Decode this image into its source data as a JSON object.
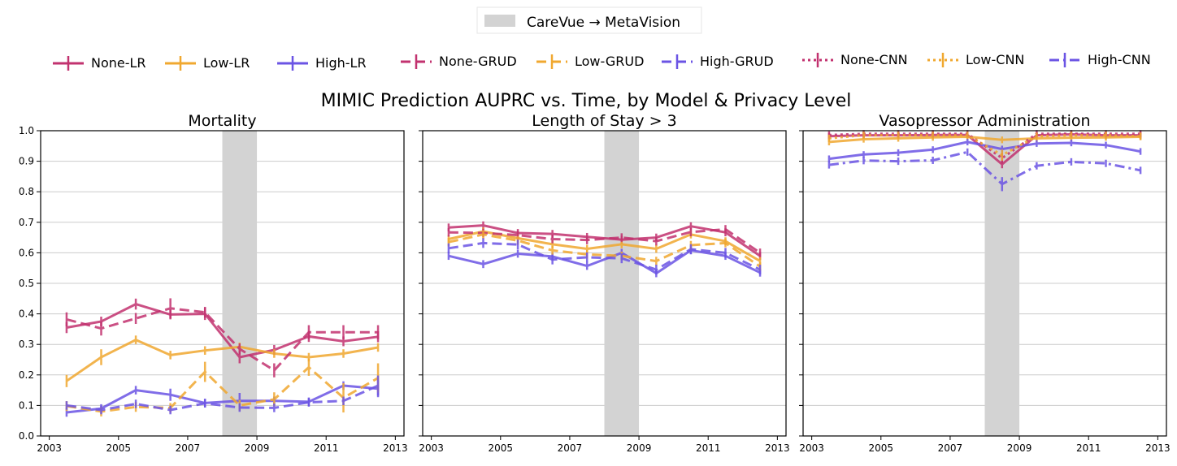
{
  "figure": {
    "title": "MIMIC Prediction AUPRC vs. Time, by Model & Privacy Level",
    "shading_legend": "CareVue → MetaVision"
  },
  "colors": {
    "None": "#c2326f",
    "Low": "#f0a830",
    "High": "#6b54e4",
    "shade": "#d3d3d3",
    "grid": "#cccccc"
  },
  "legend": [
    {
      "label": "None-LR",
      "level": "None",
      "dash": "solid"
    },
    {
      "label": "Low-LR",
      "level": "Low",
      "dash": "solid"
    },
    {
      "label": "High-LR",
      "level": "High",
      "dash": "solid"
    },
    {
      "label": "None-GRUD",
      "level": "None",
      "dash": "dashed"
    },
    {
      "label": "Low-GRUD",
      "level": "Low",
      "dash": "dashed"
    },
    {
      "label": "High-GRUD",
      "level": "High",
      "dash": "dashed"
    },
    {
      "label": "None-CNN",
      "level": "None",
      "dash": "dotted"
    },
    {
      "label": "Low-CNN",
      "level": "Low",
      "dash": "dotted"
    },
    {
      "label": "High-CNN",
      "level": "High",
      "dash": "dashdot"
    }
  ],
  "chart_data": [
    {
      "type": "line",
      "title": "Mortality",
      "xlim": [
        2002.75,
        2013.25
      ],
      "ylim": [
        0.0,
        1.0
      ],
      "xticks": [
        2003,
        2005,
        2007,
        2009,
        2011,
        2013
      ],
      "yticks": [
        0.0,
        0.1,
        0.2,
        0.3,
        0.4,
        0.5,
        0.6,
        0.7,
        0.8,
        0.9,
        1.0
      ],
      "shade": [
        2008,
        2009
      ],
      "grid": "y",
      "series": [
        {
          "name": "None-LR",
          "level": "None",
          "dash": "solid",
          "x": [
            2003.5,
            2004.5,
            2005.5,
            2006.5,
            2007.5,
            2008.5,
            2009.5,
            2010.5,
            2011.5,
            2012.5
          ],
          "y": [
            0.355,
            0.375,
            0.432,
            0.398,
            0.4,
            0.258,
            0.282,
            0.326,
            0.31,
            0.325
          ],
          "err": [
            0.01,
            0.008,
            0.01,
            0.008,
            0.012,
            0.012,
            0.008,
            0.01,
            0.008,
            0.01
          ]
        },
        {
          "name": "Low-LR",
          "level": "Low",
          "dash": "solid",
          "x": [
            2003.5,
            2004.5,
            2005.5,
            2006.5,
            2007.5,
            2008.5,
            2009.5,
            2010.5,
            2011.5,
            2012.5
          ],
          "y": [
            0.18,
            0.258,
            0.315,
            0.265,
            0.28,
            0.292,
            0.27,
            0.258,
            0.27,
            0.29
          ],
          "err": [
            0.012,
            0.018,
            0.006,
            0.006,
            0.006,
            0.006,
            0.006,
            0.006,
            0.006,
            0.006
          ]
        },
        {
          "name": "High-LR",
          "level": "High",
          "dash": "solid",
          "x": [
            2003.5,
            2004.5,
            2005.5,
            2006.5,
            2007.5,
            2008.5,
            2009.5,
            2010.5,
            2011.5,
            2012.5
          ],
          "y": [
            0.077,
            0.09,
            0.15,
            0.135,
            0.108,
            0.115,
            0.115,
            0.112,
            0.165,
            0.155
          ],
          "err": [
            0.006,
            0.006,
            0.006,
            0.012,
            0.006,
            0.018,
            0.006,
            0.006,
            0.006,
            0.02
          ]
        },
        {
          "name": "None-GRUD",
          "level": "None",
          "dash": "dashed",
          "x": [
            2003.5,
            2004.5,
            2005.5,
            2006.5,
            2007.5,
            2008.5,
            2009.5,
            2010.5,
            2011.5,
            2012.5
          ],
          "y": [
            0.382,
            0.352,
            0.385,
            0.418,
            0.405,
            0.285,
            0.215,
            0.34,
            0.34,
            0.34
          ],
          "err": [
            0.015,
            0.015,
            0.01,
            0.025,
            0.01,
            0.01,
            0.015,
            0.015,
            0.015,
            0.015
          ]
        },
        {
          "name": "Low-GRUD",
          "level": "Low",
          "dash": "dashed",
          "x": [
            2003.5,
            2004.5,
            2005.5,
            2006.5,
            2007.5,
            2008.5,
            2009.5,
            2010.5,
            2011.5,
            2012.5
          ],
          "y": [
            0.098,
            0.08,
            0.095,
            0.092,
            0.21,
            0.1,
            0.12,
            0.225,
            0.125,
            0.19
          ],
          "err": [
            0.008,
            0.008,
            0.008,
            0.008,
            0.025,
            0.01,
            0.015,
            0.02,
            0.04,
            0.04
          ]
        },
        {
          "name": "High-GRUD",
          "level": "High",
          "dash": "dashed",
          "x": [
            2003.5,
            2004.5,
            2005.5,
            2006.5,
            2007.5,
            2008.5,
            2009.5,
            2010.5,
            2011.5,
            2012.5
          ],
          "y": [
            0.1,
            0.085,
            0.105,
            0.085,
            0.107,
            0.093,
            0.092,
            0.11,
            0.115,
            0.165
          ],
          "err": [
            0.006,
            0.006,
            0.006,
            0.006,
            0.006,
            0.006,
            0.006,
            0.006,
            0.006,
            0.025
          ]
        }
      ]
    },
    {
      "type": "line",
      "title": "Length of Stay > 3",
      "xlim": [
        2002.75,
        2013.25
      ],
      "ylim": [
        0.0,
        1.0
      ],
      "xticks": [
        2003,
        2005,
        2007,
        2009,
        2011,
        2013
      ],
      "yticks": [
        0.0,
        0.1,
        0.2,
        0.3,
        0.4,
        0.5,
        0.6,
        0.7,
        0.8,
        0.9,
        1.0
      ],
      "shade": [
        2008,
        2009
      ],
      "grid": "y",
      "series": [
        {
          "name": "None-LR",
          "level": "None",
          "dash": "solid",
          "x": [
            2003.5,
            2004.5,
            2005.5,
            2006.5,
            2007.5,
            2008.5,
            2009.5,
            2010.5,
            2011.5,
            2012.5
          ],
          "y": [
            0.683,
            0.69,
            0.665,
            0.662,
            0.652,
            0.643,
            0.65,
            0.687,
            0.667,
            0.59
          ],
          "err": [
            0.005,
            0.005,
            0.005,
            0.005,
            0.005,
            0.005,
            0.005,
            0.005,
            0.005,
            0.005
          ]
        },
        {
          "name": "Low-LR",
          "level": "Low",
          "dash": "solid",
          "x": [
            2003.5,
            2004.5,
            2005.5,
            2006.5,
            2007.5,
            2008.5,
            2009.5,
            2010.5,
            2011.5,
            2012.5
          ],
          "y": [
            0.645,
            0.67,
            0.648,
            0.628,
            0.613,
            0.628,
            0.613,
            0.66,
            0.638,
            0.573
          ],
          "err": [
            0.005,
            0.005,
            0.005,
            0.005,
            0.005,
            0.005,
            0.005,
            0.005,
            0.005,
            0.005
          ]
        },
        {
          "name": "High-LR",
          "level": "High",
          "dash": "solid",
          "x": [
            2003.5,
            2004.5,
            2005.5,
            2006.5,
            2007.5,
            2008.5,
            2009.5,
            2010.5,
            2011.5,
            2012.5
          ],
          "y": [
            0.59,
            0.563,
            0.597,
            0.588,
            0.557,
            0.6,
            0.533,
            0.608,
            0.59,
            0.535
          ],
          "err": [
            0.005,
            0.005,
            0.005,
            0.005,
            0.005,
            0.005,
            0.005,
            0.005,
            0.005,
            0.005
          ]
        },
        {
          "name": "None-GRUD",
          "level": "None",
          "dash": "dashed",
          "x": [
            2003.5,
            2004.5,
            2005.5,
            2006.5,
            2007.5,
            2008.5,
            2009.5,
            2010.5,
            2011.5,
            2012.5
          ],
          "y": [
            0.667,
            0.665,
            0.658,
            0.645,
            0.642,
            0.65,
            0.638,
            0.668,
            0.677,
            0.6
          ],
          "err": [
            0.006,
            0.006,
            0.006,
            0.006,
            0.006,
            0.006,
            0.006,
            0.006,
            0.006,
            0.006
          ]
        },
        {
          "name": "Low-GRUD",
          "level": "Low",
          "dash": "dashed",
          "x": [
            2003.5,
            2004.5,
            2005.5,
            2006.5,
            2007.5,
            2008.5,
            2009.5,
            2010.5,
            2011.5,
            2012.5
          ],
          "y": [
            0.635,
            0.66,
            0.64,
            0.608,
            0.595,
            0.59,
            0.573,
            0.625,
            0.632,
            0.555
          ],
          "err": [
            0.006,
            0.006,
            0.006,
            0.006,
            0.006,
            0.006,
            0.006,
            0.006,
            0.006,
            0.006
          ]
        },
        {
          "name": "High-GRUD",
          "level": "High",
          "dash": "dashed",
          "x": [
            2003.5,
            2004.5,
            2005.5,
            2006.5,
            2007.5,
            2008.5,
            2009.5,
            2010.5,
            2011.5,
            2012.5
          ],
          "y": [
            0.615,
            0.632,
            0.627,
            0.578,
            0.585,
            0.582,
            0.545,
            0.612,
            0.6,
            0.545
          ],
          "err": [
            0.008,
            0.008,
            0.008,
            0.008,
            0.008,
            0.008,
            0.008,
            0.008,
            0.008,
            0.008
          ]
        }
      ]
    },
    {
      "type": "line",
      "title": "Vasopressor Administration",
      "xlim": [
        2002.75,
        2013.25
      ],
      "ylim": [
        0.0,
        1.0
      ],
      "xticks": [
        2003,
        2005,
        2007,
        2009,
        2011,
        2013
      ],
      "yticks": [
        0.0,
        0.1,
        0.2,
        0.3,
        0.4,
        0.5,
        0.6,
        0.7,
        0.8,
        0.9,
        1.0
      ],
      "shade": [
        2008,
        2009
      ],
      "grid": "y",
      "series": [
        {
          "name": "None-LR",
          "level": "None",
          "dash": "solid",
          "x": [
            2003.5,
            2004.5,
            2005.5,
            2006.5,
            2007.5,
            2008.5,
            2009.5,
            2010.5,
            2011.5,
            2012.5
          ],
          "y": [
            0.982,
            0.985,
            0.985,
            0.986,
            0.986,
            0.89,
            0.985,
            0.988,
            0.985,
            0.985
          ],
          "err": [
            0.003,
            0.003,
            0.003,
            0.003,
            0.003,
            0.005,
            0.003,
            0.003,
            0.003,
            0.003
          ]
        },
        {
          "name": "Low-LR",
          "level": "Low",
          "dash": "solid",
          "x": [
            2003.5,
            2004.5,
            2005.5,
            2006.5,
            2007.5,
            2008.5,
            2009.5,
            2010.5,
            2011.5,
            2012.5
          ],
          "y": [
            0.963,
            0.972,
            0.975,
            0.978,
            0.98,
            0.97,
            0.975,
            0.977,
            0.978,
            0.98
          ],
          "err": [
            0.003,
            0.003,
            0.003,
            0.003,
            0.003,
            0.003,
            0.003,
            0.003,
            0.003,
            0.003
          ]
        },
        {
          "name": "High-LR",
          "level": "High",
          "dash": "solid",
          "x": [
            2003.5,
            2004.5,
            2005.5,
            2006.5,
            2007.5,
            2008.5,
            2009.5,
            2010.5,
            2011.5,
            2012.5
          ],
          "y": [
            0.908,
            0.922,
            0.928,
            0.938,
            0.963,
            0.94,
            0.958,
            0.96,
            0.953,
            0.932
          ],
          "err": [
            0.003,
            0.003,
            0.003,
            0.003,
            0.003,
            0.003,
            0.003,
            0.003,
            0.003,
            0.003
          ]
        },
        {
          "name": "None-CNN",
          "level": "None",
          "dash": "dotted",
          "x": [
            2003.5,
            2004.5,
            2005.5,
            2006.5,
            2007.5,
            2008.5,
            2009.5,
            2010.5,
            2011.5,
            2012.5
          ],
          "y": [
            0.986,
            0.99,
            0.99,
            0.99,
            0.99,
            0.91,
            0.99,
            0.99,
            0.99,
            0.99
          ],
          "err": [
            0.004,
            0.004,
            0.004,
            0.004,
            0.004,
            0.01,
            0.004,
            0.004,
            0.004,
            0.004
          ]
        },
        {
          "name": "Low-CNN",
          "level": "Low",
          "dash": "dotted",
          "x": [
            2003.5,
            2004.5,
            2005.5,
            2006.5,
            2007.5,
            2008.5,
            2009.5,
            2010.5,
            2011.5,
            2012.5
          ],
          "y": [
            0.975,
            0.985,
            0.985,
            0.985,
            0.985,
            0.92,
            0.982,
            0.985,
            0.985,
            0.982
          ],
          "err": [
            0.004,
            0.004,
            0.004,
            0.004,
            0.004,
            0.01,
            0.004,
            0.004,
            0.004,
            0.004
          ]
        },
        {
          "name": "High-CNN",
          "level": "High",
          "dash": "dashdot",
          "x": [
            2003.5,
            2004.5,
            2005.5,
            2006.5,
            2007.5,
            2008.5,
            2009.5,
            2010.5,
            2011.5,
            2012.5
          ],
          "y": [
            0.888,
            0.902,
            0.9,
            0.903,
            0.93,
            0.825,
            0.885,
            0.898,
            0.893,
            0.87
          ],
          "err": [
            0.004,
            0.004,
            0.004,
            0.004,
            0.004,
            0.015,
            0.004,
            0.004,
            0.004,
            0.004
          ]
        }
      ]
    }
  ]
}
